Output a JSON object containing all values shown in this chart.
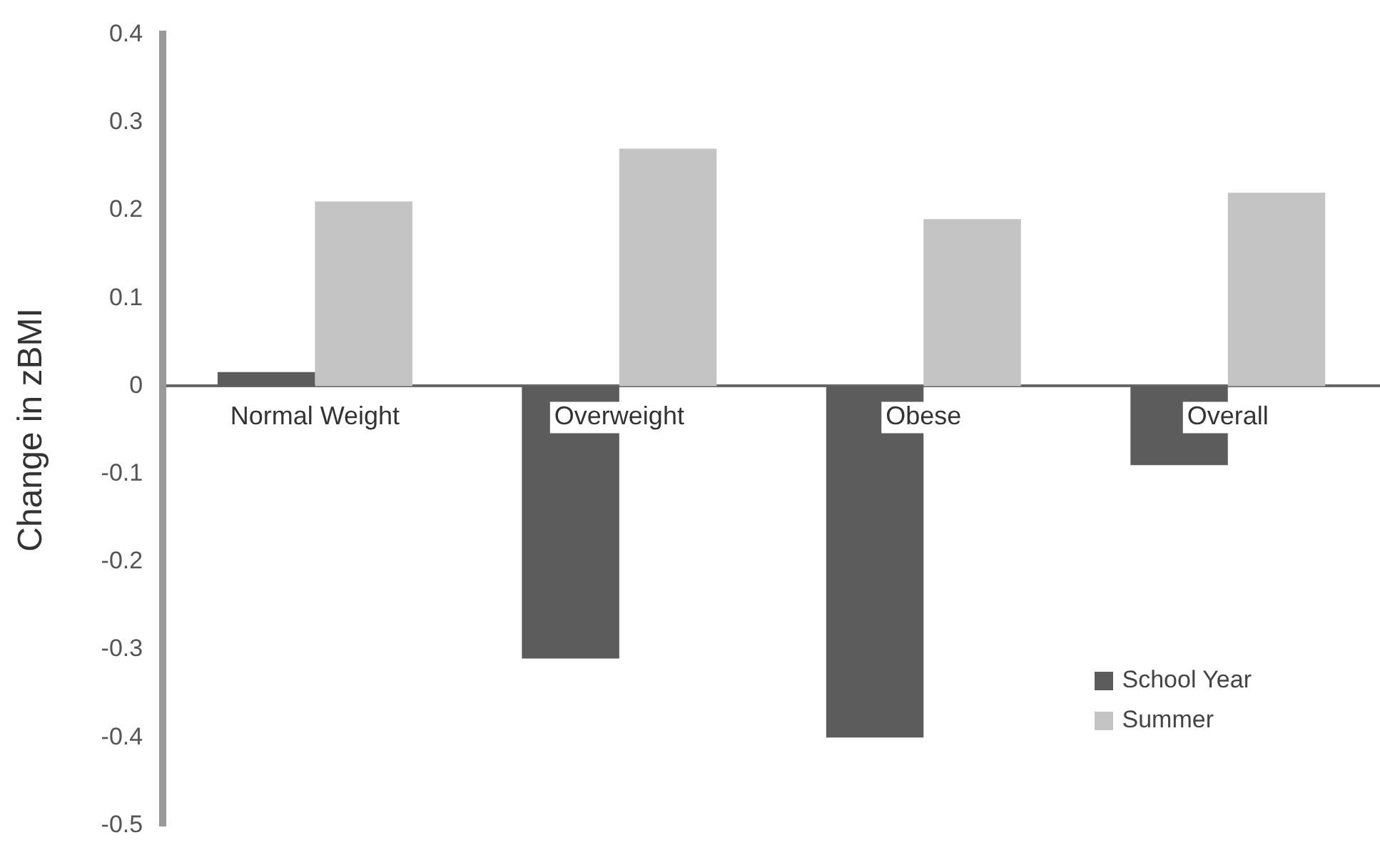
{
  "chart_data": {
    "type": "bar",
    "ylabel": "Change in zBMI",
    "categories": [
      "Normal Weight",
      "Overweight",
      "Obese",
      "Overall"
    ],
    "series": [
      {
        "name": "School Year",
        "color": "#5c5c5c",
        "values": [
          0.016,
          -0.31,
          -0.4,
          -0.09
        ]
      },
      {
        "name": "Summer",
        "color": "#c4c4c4",
        "values": [
          0.21,
          0.27,
          0.19,
          0.22
        ]
      }
    ],
    "ylim": [
      -0.5,
      0.4
    ],
    "yticks": [
      -0.5,
      -0.4,
      -0.3,
      -0.2,
      -0.1,
      0,
      0.1,
      0.2,
      0.3,
      0.4
    ],
    "grid": false,
    "legend": "bottom right"
  }
}
